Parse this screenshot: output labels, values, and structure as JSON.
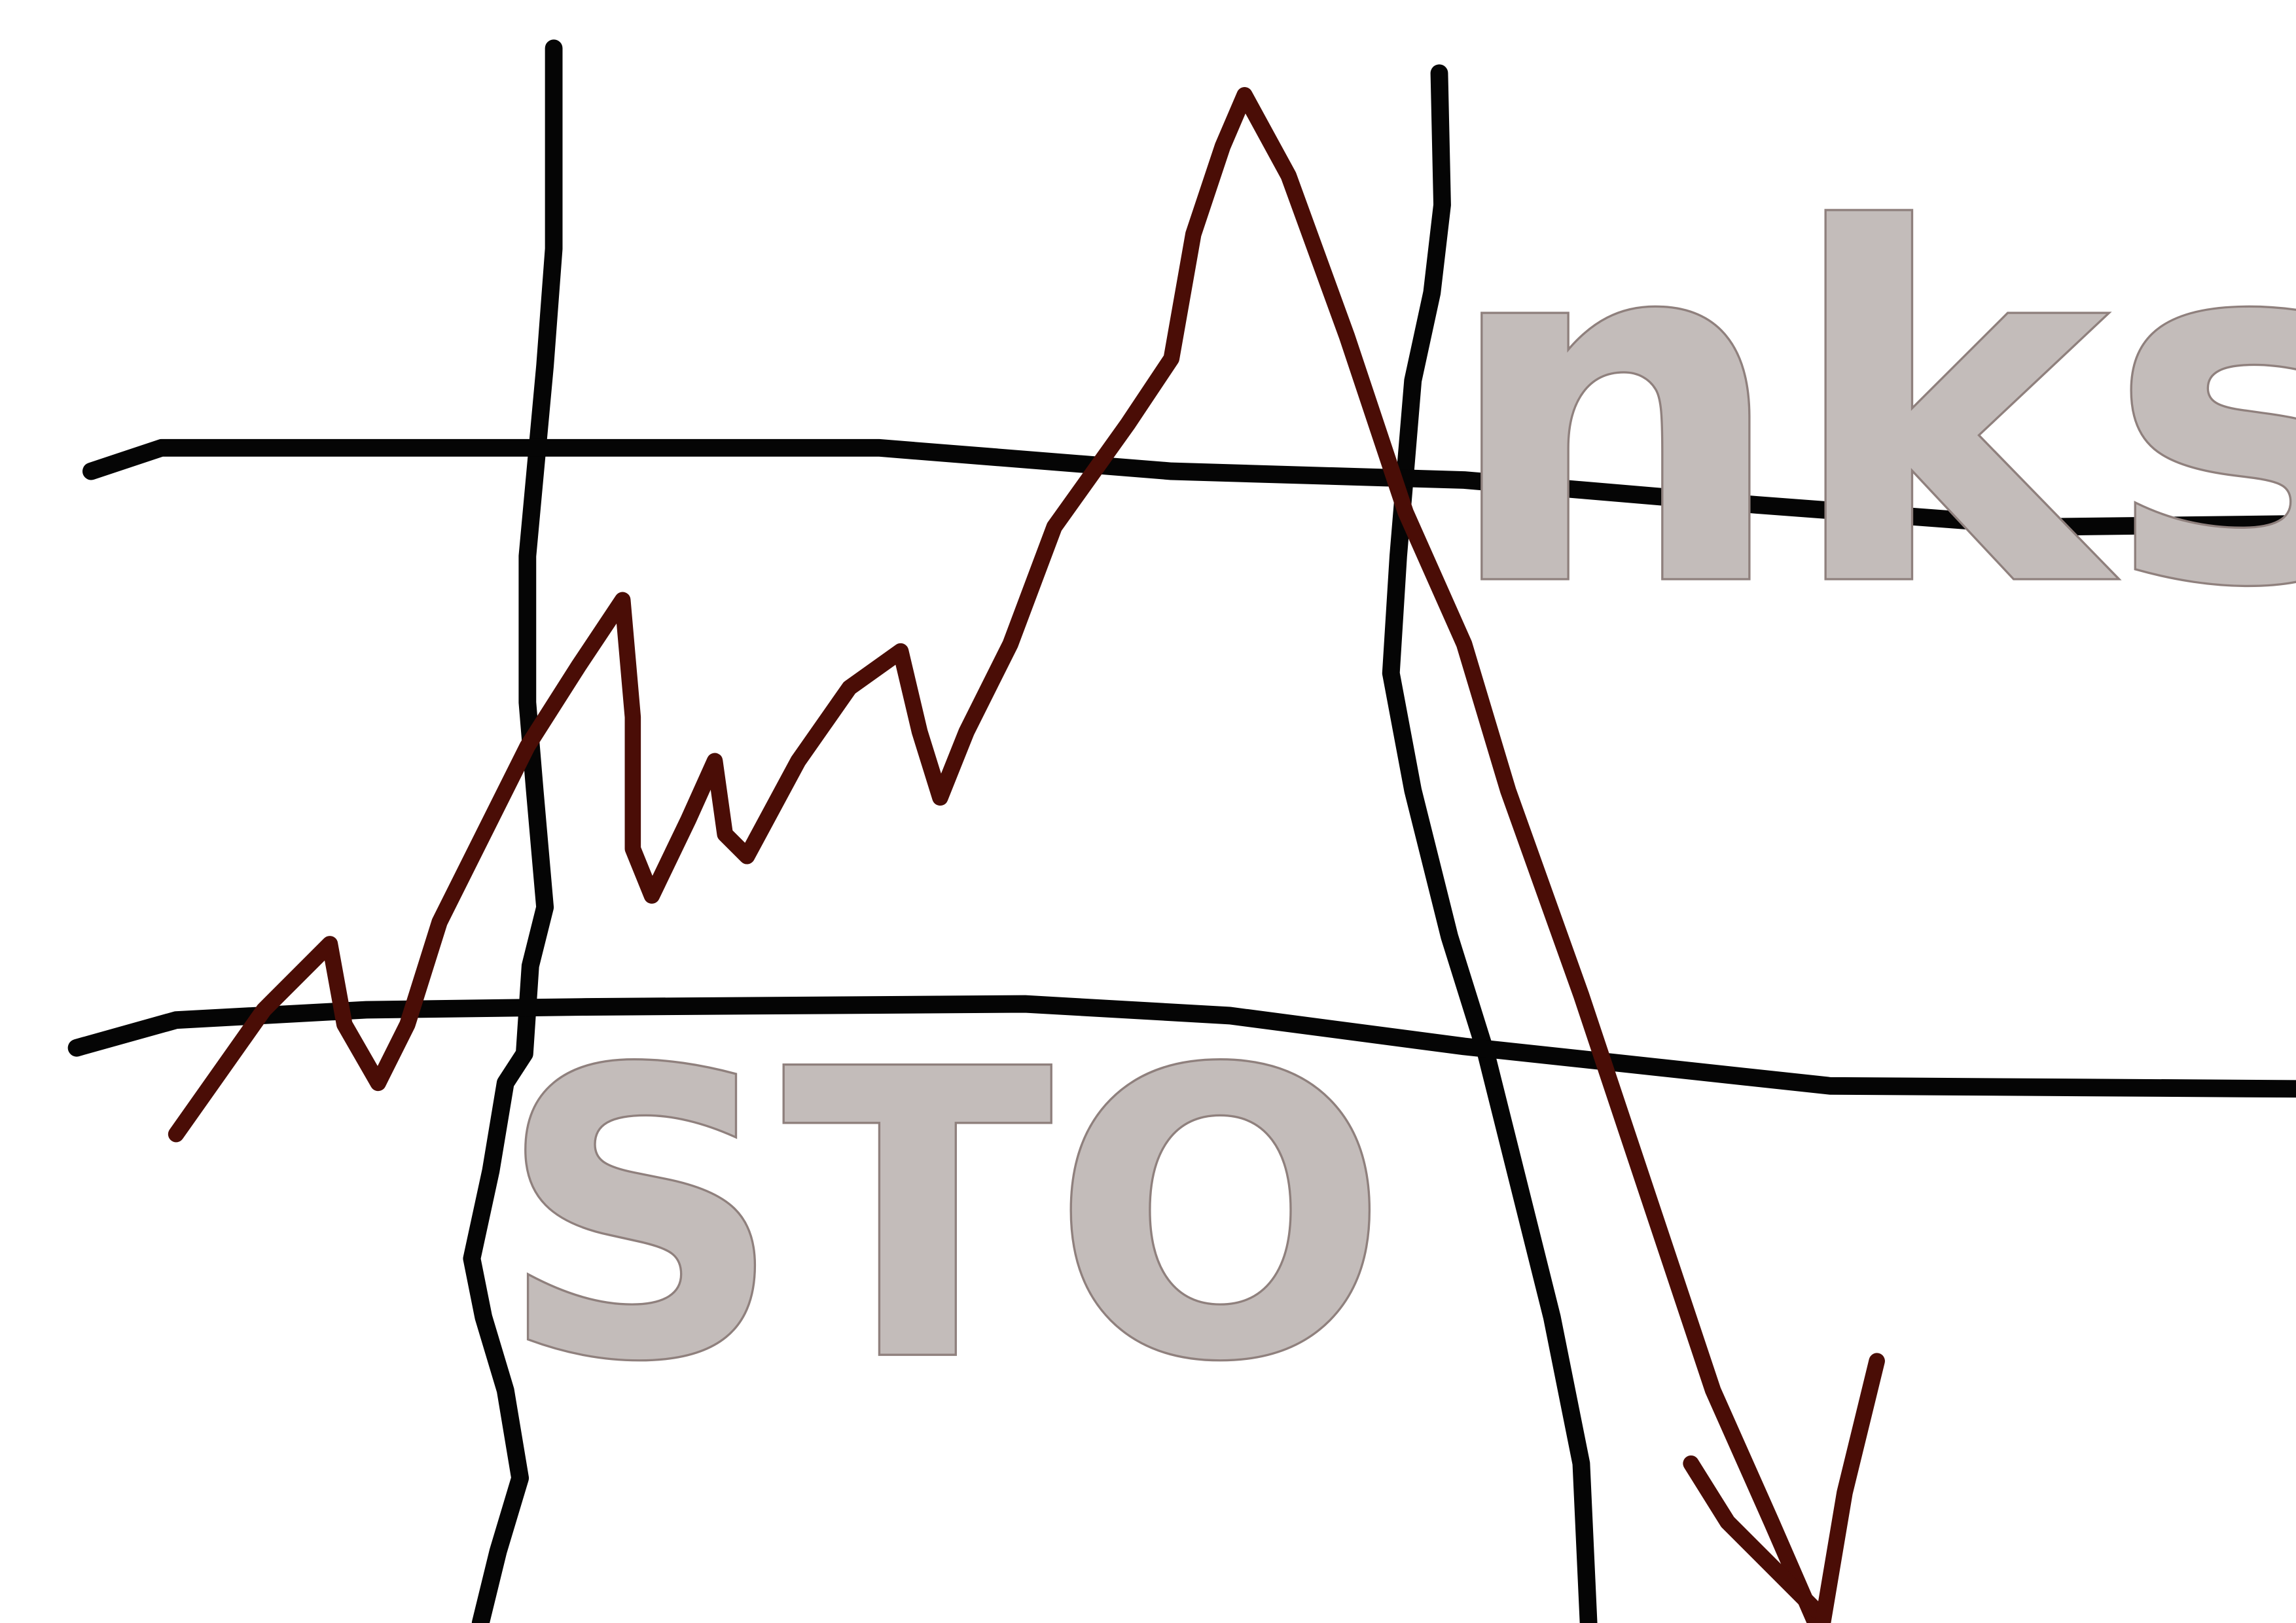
{
  "texts": {
    "lower": "STO",
    "upper": "nks"
  }
}
